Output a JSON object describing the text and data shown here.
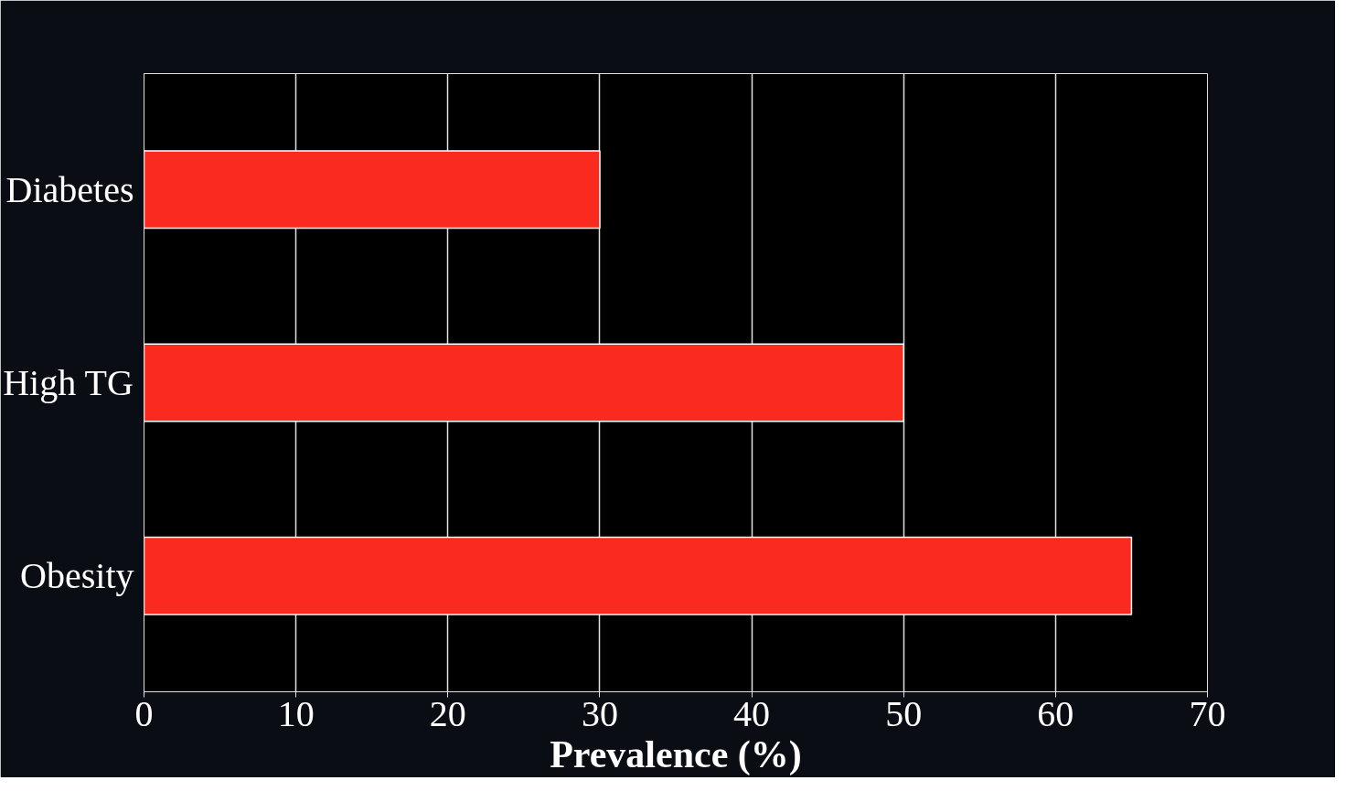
{
  "chart_data": {
    "type": "bar",
    "orientation": "horizontal",
    "categories": [
      "Diabetes",
      "High TG",
      "Obesity"
    ],
    "values": [
      30,
      50,
      65
    ],
    "color": "#fa2a1e",
    "xlim": [
      0,
      70
    ],
    "xticks": [
      0,
      10,
      20,
      30,
      40,
      50,
      60,
      70
    ],
    "xlabel": "Prevalence (%)",
    "grid": "x"
  }
}
